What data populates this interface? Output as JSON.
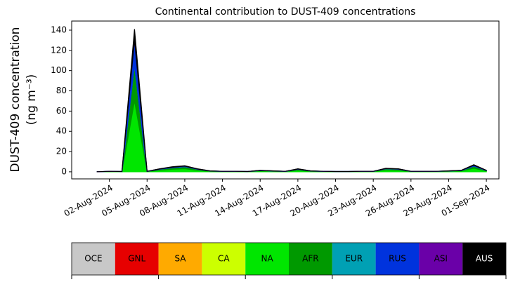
{
  "chart_data": {
    "type": "stacked_area",
    "title": "Continental contribution to DUST-409 concentrations",
    "ylabel": [
      "DUST-409 concentration",
      "(ng m⁻³)"
    ],
    "x": [
      "2024-08-01",
      "2024-08-02",
      "2024-08-03",
      "2024-08-04",
      "2024-08-05",
      "2024-08-06",
      "2024-08-07",
      "2024-08-08",
      "2024-08-09",
      "2024-08-10",
      "2024-08-11",
      "2024-08-12",
      "2024-08-13",
      "2024-08-14",
      "2024-08-15",
      "2024-08-16",
      "2024-08-17",
      "2024-08-18",
      "2024-08-19",
      "2024-08-20",
      "2024-08-21",
      "2024-08-22",
      "2024-08-23",
      "2024-08-24",
      "2024-08-25",
      "2024-08-26",
      "2024-08-27",
      "2024-08-28",
      "2024-08-29",
      "2024-08-30",
      "2024-08-31",
      "2024-09-01"
    ],
    "xlim": [
      "2024-07-30",
      "2024-09-02"
    ],
    "xticks": [
      {
        "value": "2024-08-02",
        "label": "02-Aug-2024"
      },
      {
        "value": "2024-08-05",
        "label": "05-Aug-2024"
      },
      {
        "value": "2024-08-08",
        "label": "08-Aug-2024"
      },
      {
        "value": "2024-08-11",
        "label": "11-Aug-2024"
      },
      {
        "value": "2024-08-14",
        "label": "14-Aug-2024"
      },
      {
        "value": "2024-08-17",
        "label": "17-Aug-2024"
      },
      {
        "value": "2024-08-20",
        "label": "20-Aug-2024"
      },
      {
        "value": "2024-08-23",
        "label": "23-Aug-2024"
      },
      {
        "value": "2024-08-26",
        "label": "26-Aug-2024"
      },
      {
        "value": "2024-08-29",
        "label": "29-Aug-2024"
      },
      {
        "value": "2024-09-01",
        "label": "01-Sep-2024"
      }
    ],
    "ylim": [
      -7,
      149
    ],
    "yticks": [
      0,
      20,
      40,
      60,
      80,
      100,
      120,
      140
    ],
    "series": [
      {
        "name": "OCE",
        "color": "#c8c8c8",
        "text_color": "#000000",
        "values": [
          0,
          0,
          0,
          0,
          0,
          0,
          0,
          0,
          0,
          0,
          0,
          0,
          0,
          0,
          0,
          0,
          0,
          0,
          0,
          0,
          0,
          0,
          0,
          0,
          0,
          0,
          0,
          0,
          0,
          0,
          0,
          0
        ]
      },
      {
        "name": "GNL",
        "color": "#e60000",
        "text_color": "#000000",
        "values": [
          0,
          0,
          0,
          0,
          0,
          0,
          0,
          0,
          0,
          0,
          0,
          0,
          0,
          0,
          0,
          0,
          0,
          0,
          0,
          0,
          0,
          0,
          0,
          0,
          0,
          0,
          0,
          0,
          0,
          0,
          0,
          0
        ]
      },
      {
        "name": "SA",
        "color": "#ffaa00",
        "text_color": "#000000",
        "values": [
          0,
          0,
          0,
          0,
          0,
          0,
          0,
          0,
          0,
          0,
          0,
          0,
          0,
          0,
          0,
          0,
          0,
          0,
          0,
          0,
          0,
          0,
          0,
          0,
          0,
          0,
          0,
          0,
          0,
          0,
          0,
          0
        ]
      },
      {
        "name": "CA",
        "color": "#ccff00",
        "text_color": "#000000",
        "values": [
          0,
          0,
          0,
          0,
          0,
          0,
          0,
          0,
          0,
          0,
          0,
          0,
          0,
          0,
          0,
          0,
          0,
          0,
          0,
          0,
          0,
          0,
          0,
          0,
          0,
          0,
          0,
          0,
          0,
          0,
          0,
          0
        ]
      },
      {
        "name": "NA",
        "color": "#00e600",
        "text_color": "#000000",
        "values": [
          0,
          0.3,
          0.2,
          70,
          0.3,
          1.5,
          2.5,
          3,
          1.5,
          0.5,
          0.3,
          0.3,
          0.2,
          0.8,
          0.5,
          0.3,
          1.5,
          0.5,
          0.3,
          0.2,
          0.2,
          0.3,
          0.3,
          1.8,
          1.5,
          0.3,
          0.3,
          0.3,
          0.5,
          0.8,
          3.5,
          0.8
        ]
      },
      {
        "name": "AFR",
        "color": "#009900",
        "text_color": "#000000",
        "values": [
          0,
          0.1,
          0.1,
          35,
          0.1,
          1,
          1.5,
          2,
          1,
          0.3,
          0.1,
          0.1,
          0.1,
          0.4,
          0.3,
          0.1,
          1,
          0.3,
          0.1,
          0.1,
          0.1,
          0.1,
          0.1,
          1.2,
          1,
          0.1,
          0.1,
          0.1,
          0.3,
          0.4,
          2,
          0.4
        ]
      },
      {
        "name": "EUR",
        "color": "#00a0b4",
        "text_color": "#000000",
        "values": [
          0,
          0,
          0,
          0,
          0,
          0,
          0,
          0,
          0,
          0,
          0,
          0,
          0,
          0,
          0,
          0,
          0,
          0,
          0,
          0,
          0,
          0,
          0,
          0,
          0,
          0,
          0,
          0,
          0,
          0,
          0,
          0
        ]
      },
      {
        "name": "RUS",
        "color": "#0033dd",
        "text_color": "#000000",
        "values": [
          0,
          0.1,
          0,
          25,
          0.1,
          0.3,
          0.6,
          0.6,
          0.3,
          0.1,
          0.1,
          0.1,
          0,
          0.2,
          0.1,
          0.1,
          0.3,
          0.1,
          0.1,
          0,
          0,
          0.1,
          0.1,
          0.3,
          0.3,
          0.1,
          0.1,
          0.1,
          0.1,
          0.2,
          1,
          0.2
        ]
      },
      {
        "name": "ASI",
        "color": "#6a00a8",
        "text_color": "#000000",
        "values": [
          0,
          0,
          0,
          0,
          0,
          0,
          0,
          0,
          0,
          0,
          0,
          0,
          0,
          0,
          0,
          0,
          0,
          0,
          0,
          0,
          0,
          0,
          0,
          0,
          0,
          0,
          0,
          0,
          0,
          0,
          0,
          0
        ]
      },
      {
        "name": "AUS",
        "color": "#000000",
        "text_color": "#ffffff",
        "values": [
          0,
          0,
          0,
          11,
          0,
          0.2,
          0.4,
          0.4,
          0.2,
          0.1,
          0,
          0,
          0,
          0.1,
          0.1,
          0,
          0.2,
          0.1,
          0,
          0,
          0,
          0,
          0,
          0.2,
          0.2,
          0,
          0,
          0,
          0.1,
          0.1,
          0.5,
          0.1
        ]
      }
    ]
  }
}
